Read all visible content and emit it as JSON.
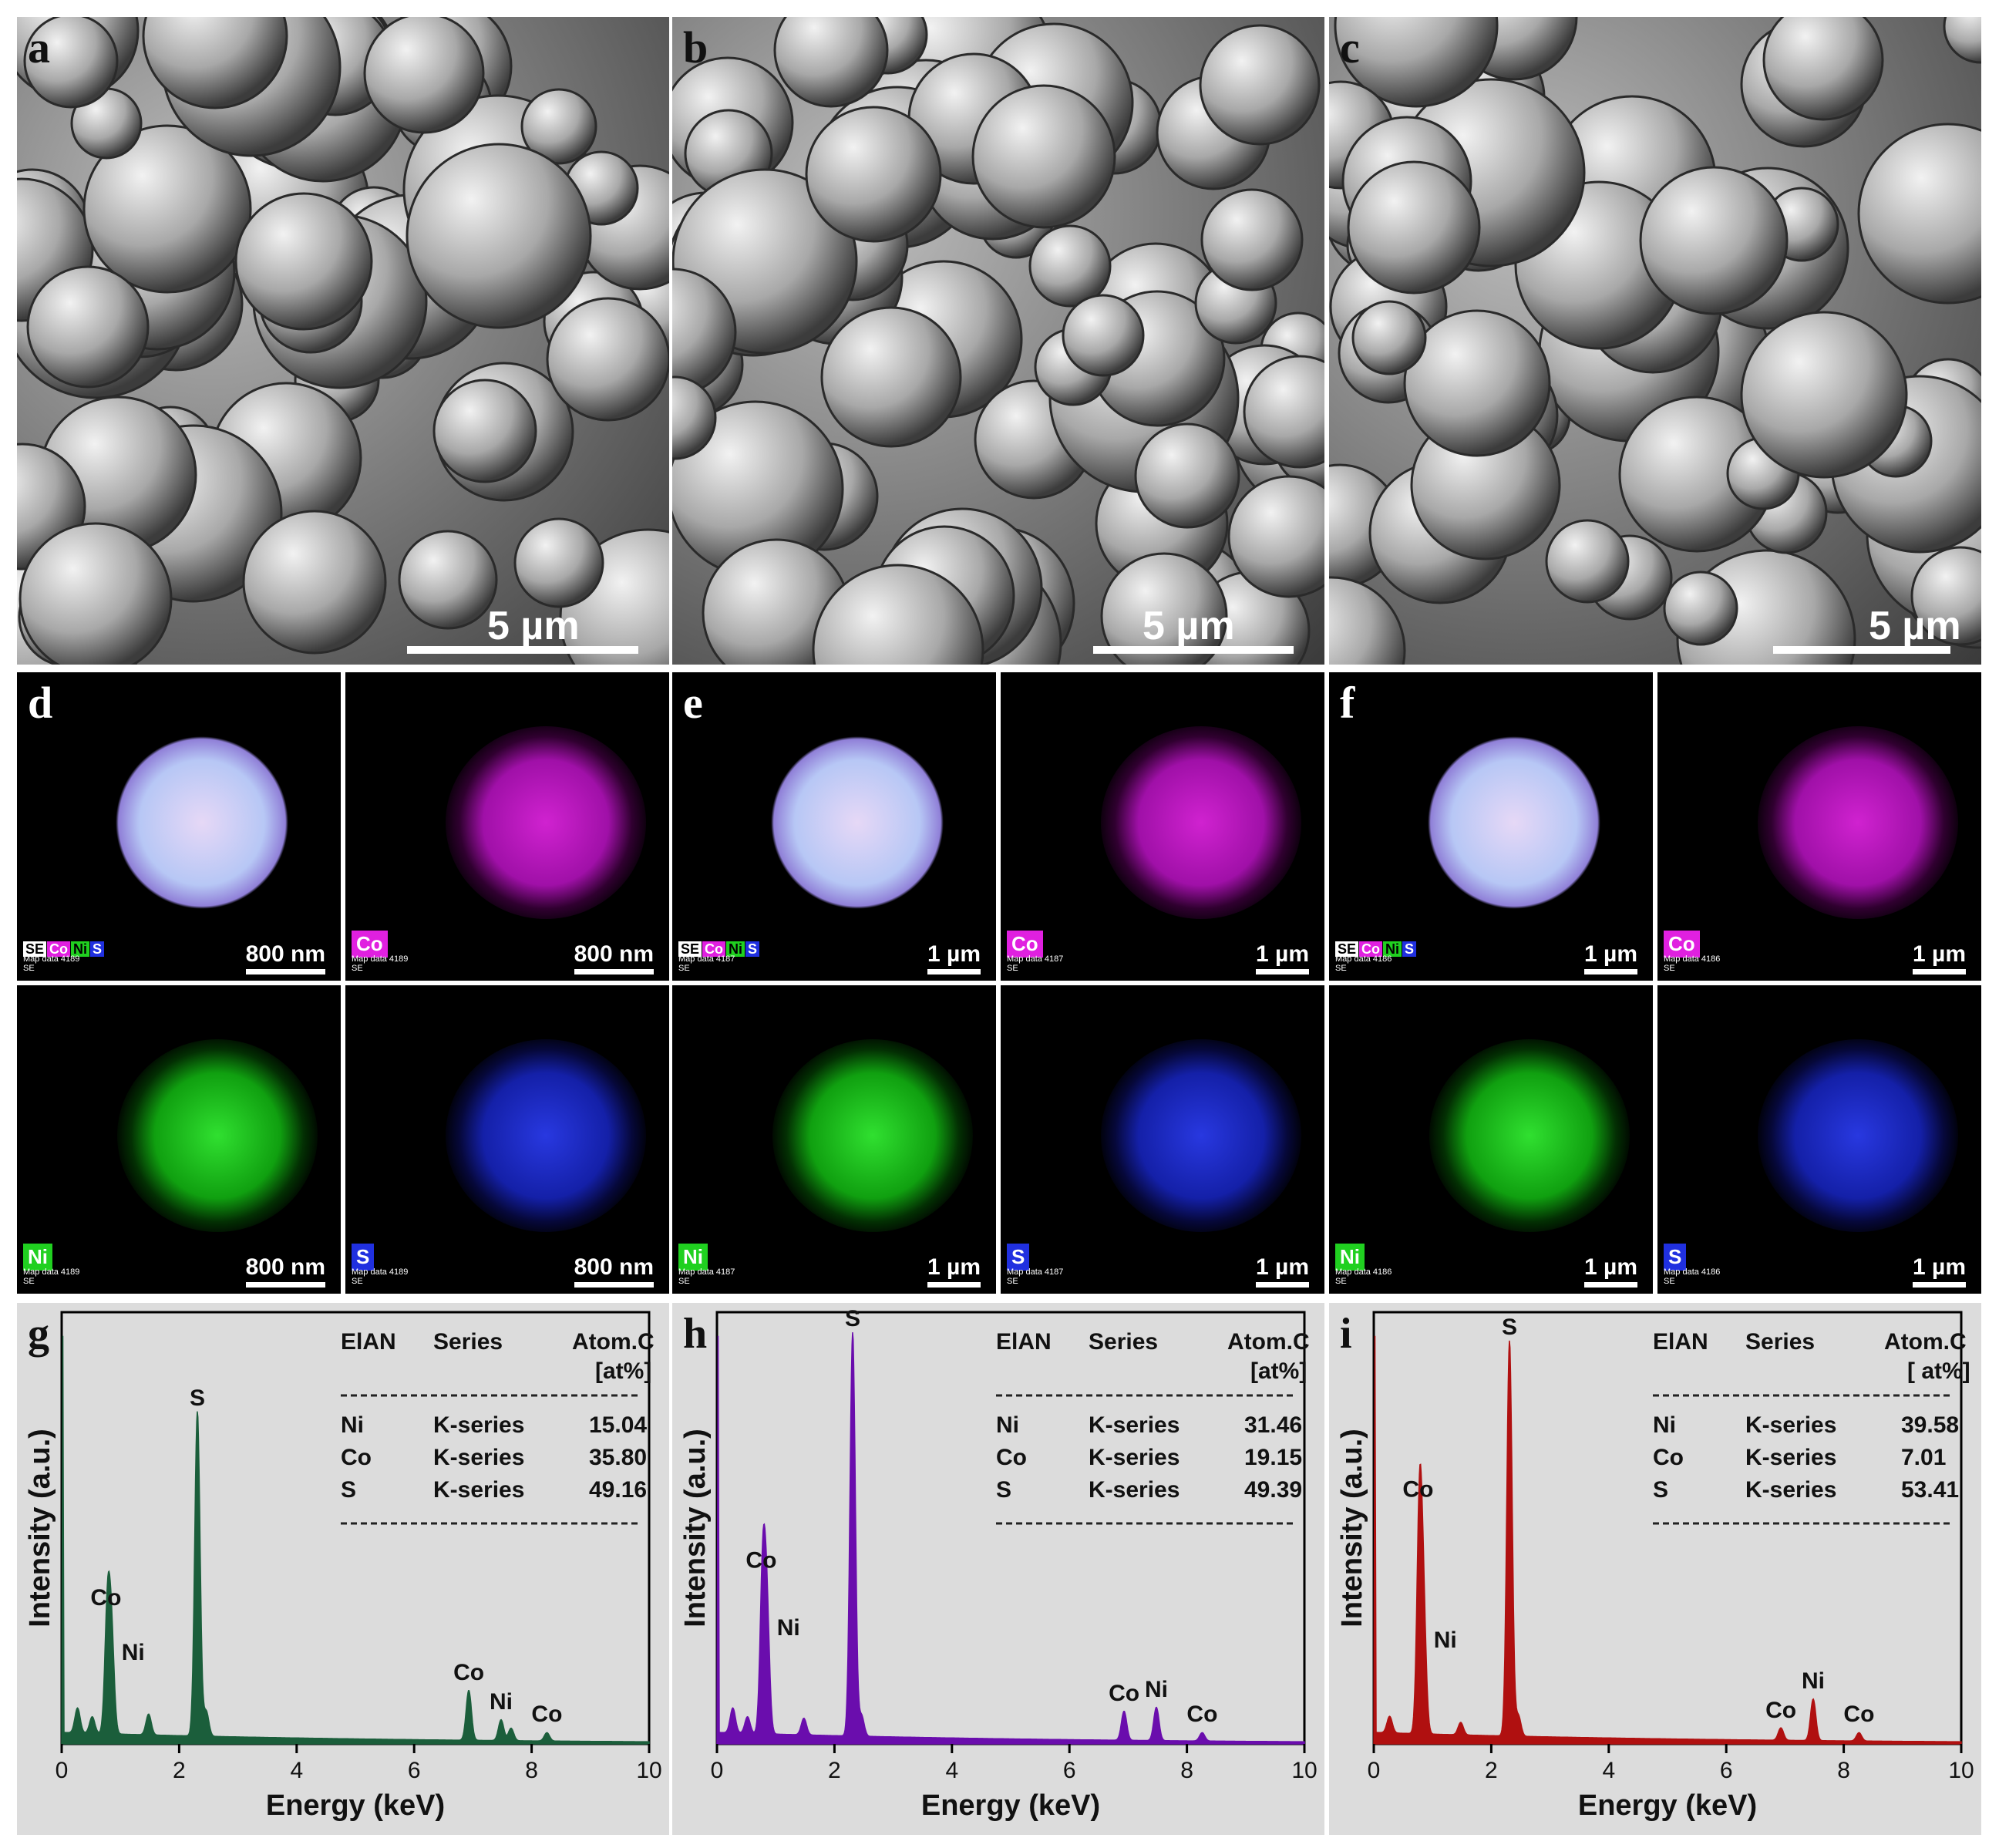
{
  "sem_panels": [
    {
      "label": "a",
      "scale": "5 µm"
    },
    {
      "label": "b",
      "scale": "5 µm"
    },
    {
      "label": "c",
      "scale": "5 µm"
    }
  ],
  "map_groups": [
    {
      "label": "d",
      "scale": "800 nm",
      "map_id": "Map data 4189"
    },
    {
      "label": "e",
      "scale": "1 µm",
      "map_id": "Map data 4187"
    },
    {
      "label": "f",
      "scale": "1 µm",
      "map_id": "Map data 4186"
    }
  ],
  "map_tags": {
    "se": "SE",
    "co": "Co",
    "ni": "Ni",
    "s": "S",
    "se_small": "SE"
  },
  "colors": {
    "co": "#e020e0",
    "ni": "#20d020",
    "s": "#2030e0",
    "eds_g": "#1b5e3b",
    "eds_h": "#6a0dad",
    "eds_i": "#b01010"
  },
  "chart_data": [
    {
      "type": "line",
      "panel": "g",
      "xlabel": "Energy (keV)",
      "ylabel": "Intensity (a.u.)",
      "xlim": [
        0,
        10
      ],
      "xticks": [
        0,
        2,
        4,
        6,
        8,
        10
      ],
      "peaks": [
        {
          "x": 0.27,
          "y": 0.06
        },
        {
          "x": 0.52,
          "y": 0.04
        },
        {
          "x": 0.78,
          "y": 0.3,
          "label": "Co"
        },
        {
          "x": 0.85,
          "y": 0.22,
          "label": "Ni"
        },
        {
          "x": 1.48,
          "y": 0.05
        },
        {
          "x": 2.31,
          "y": 0.78,
          "label": "S"
        },
        {
          "x": 2.46,
          "y": 0.06
        },
        {
          "x": 6.93,
          "y": 0.12,
          "label": "Co"
        },
        {
          "x": 7.48,
          "y": 0.05,
          "label": "Ni"
        },
        {
          "x": 7.65,
          "y": 0.03
        },
        {
          "x": 8.26,
          "y": 0.02,
          "label": "Co"
        }
      ],
      "table": {
        "headers": [
          "ElAN",
          "Series",
          "Atom.C",
          "[at%]"
        ],
        "rows": [
          [
            "Ni",
            "K-series",
            "15.04"
          ],
          [
            "Co",
            "K-series",
            "35.80"
          ],
          [
            "S",
            "K-series",
            "49.16"
          ]
        ]
      }
    },
    {
      "type": "line",
      "panel": "h",
      "xlabel": "Energy (keV)",
      "ylabel": "Intensity (a.u.)",
      "xlim": [
        0,
        10
      ],
      "xticks": [
        0,
        2,
        4,
        6,
        8,
        10
      ],
      "peaks": [
        {
          "x": 0.27,
          "y": 0.06
        },
        {
          "x": 0.52,
          "y": 0.04
        },
        {
          "x": 0.78,
          "y": 0.39,
          "label": "Co"
        },
        {
          "x": 0.85,
          "y": 0.28,
          "label": "Ni"
        },
        {
          "x": 1.48,
          "y": 0.04
        },
        {
          "x": 2.31,
          "y": 0.97,
          "label": "S"
        },
        {
          "x": 2.46,
          "y": 0.05
        },
        {
          "x": 6.93,
          "y": 0.07,
          "label": "Co"
        },
        {
          "x": 7.48,
          "y": 0.08,
          "label": "Ni"
        },
        {
          "x": 8.26,
          "y": 0.02,
          "label": "Co"
        }
      ],
      "table": {
        "headers": [
          "ElAN",
          "Series",
          "Atom.C",
          "[at%]"
        ],
        "rows": [
          [
            "Ni",
            "K-series",
            "31.46"
          ],
          [
            "Co",
            "K-series",
            "19.15"
          ],
          [
            "S",
            "K-series",
            "49.39"
          ]
        ]
      }
    },
    {
      "type": "line",
      "panel": "i",
      "xlabel": "Energy (keV)",
      "ylabel": "Intensity (a.u.)",
      "xlim": [
        0,
        10
      ],
      "xticks": [
        0,
        2,
        4,
        6,
        8,
        10
      ],
      "peaks": [
        {
          "x": 0.27,
          "y": 0.04
        },
        {
          "x": 0.78,
          "y": 0.56,
          "label": "Co"
        },
        {
          "x": 0.85,
          "y": 0.25,
          "label": "Ni"
        },
        {
          "x": 1.48,
          "y": 0.03
        },
        {
          "x": 2.31,
          "y": 0.95,
          "label": "S"
        },
        {
          "x": 2.46,
          "y": 0.05
        },
        {
          "x": 6.93,
          "y": 0.03,
          "label": "Co"
        },
        {
          "x": 7.48,
          "y": 0.1,
          "label": "Ni"
        },
        {
          "x": 8.26,
          "y": 0.02,
          "label": "Co"
        }
      ],
      "table": {
        "headers": [
          "ElAN",
          "Series",
          "Atom.C",
          "[ at%]"
        ],
        "rows": [
          [
            "Ni",
            "K-series",
            "39.58"
          ],
          [
            "Co",
            "K-series",
            "7.01"
          ],
          [
            "S",
            "K-series",
            "53.41"
          ]
        ]
      }
    }
  ]
}
